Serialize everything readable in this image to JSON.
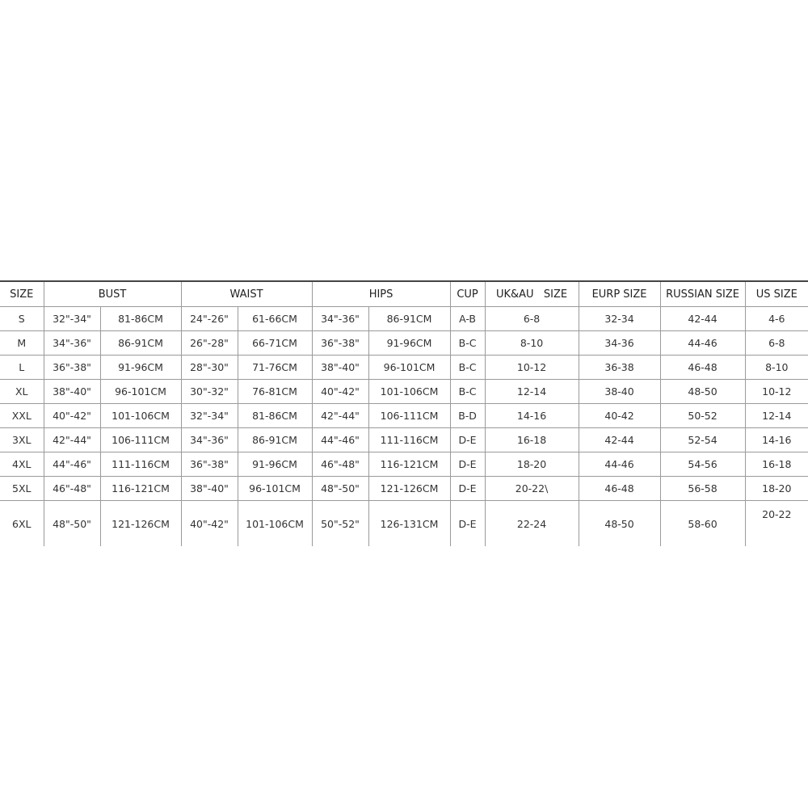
{
  "headers": [
    "SIZE",
    "BUST",
    "WAIST",
    "HIPS",
    "CUP",
    "UK&AU   SIZE",
    "EURP SIZE",
    "RUSSIAN SIZE",
    "US SIZE"
  ],
  "rows": [
    [
      "S",
      "32\"-34\"",
      "81-86CM",
      "24\"-26\"",
      "61-66CM",
      "34\"-36\"",
      "86-91CM",
      "A-B",
      "6-8",
      "32-34",
      "42-44",
      "4-6"
    ],
    [
      "M",
      "34\"-36\"",
      "86-91CM",
      "26\"-28\"",
      "66-71CM",
      "36\"-38\"",
      "91-96CM",
      "B-C",
      "8-10",
      "34-36",
      "44-46",
      "6-8"
    ],
    [
      "L",
      "36\"-38\"",
      "91-96CM",
      "28\"-30\"",
      "71-76CM",
      "38\"-40\"",
      "96-101CM",
      "B-C",
      "10-12",
      "36-38",
      "46-48",
      "8-10"
    ],
    [
      "XL",
      "38\"-40\"",
      "96-101CM",
      "30\"-32\"",
      "76-81CM",
      "40\"-42\"",
      "101-106CM",
      "B-C",
      "12-14",
      "38-40",
      "48-50",
      "10-12"
    ],
    [
      "XXL",
      "40\"-42\"",
      "101-106CM",
      "32\"-34\"",
      "81-86CM",
      "42\"-44\"",
      "106-111CM",
      "B-D",
      "14-16",
      "40-42",
      "50-52",
      "12-14"
    ],
    [
      "3XL",
      "42\"-44\"",
      "106-111CM",
      "34\"-36\"",
      "86-91CM",
      "44\"-46\"",
      "111-116CM",
      "D-E",
      "16-18",
      "42-44",
      "52-54",
      "14-16"
    ],
    [
      "4XL",
      "44\"-46\"",
      "111-116CM",
      "36\"-38\"",
      "91-96CM",
      "46\"-48\"",
      "116-121CM",
      "D-E",
      "18-20",
      "44-46",
      "54-56",
      "16-18"
    ],
    [
      "5XL",
      "46\"-48\"",
      "116-121CM",
      "38\"-40\"",
      "96-101CM",
      "48\"-50\"",
      "121-126CM",
      "D-E",
      "20-22\\",
      "46-48",
      "56-58",
      "18-20"
    ],
    [
      "6XL",
      "48\"-50\"",
      "121-126CM",
      "40\"-42\"",
      "101-106CM",
      "50\"-52\"",
      "126-131CM",
      "D-E",
      "22-24",
      "48-50",
      "58-60",
      "20-22"
    ]
  ]
}
